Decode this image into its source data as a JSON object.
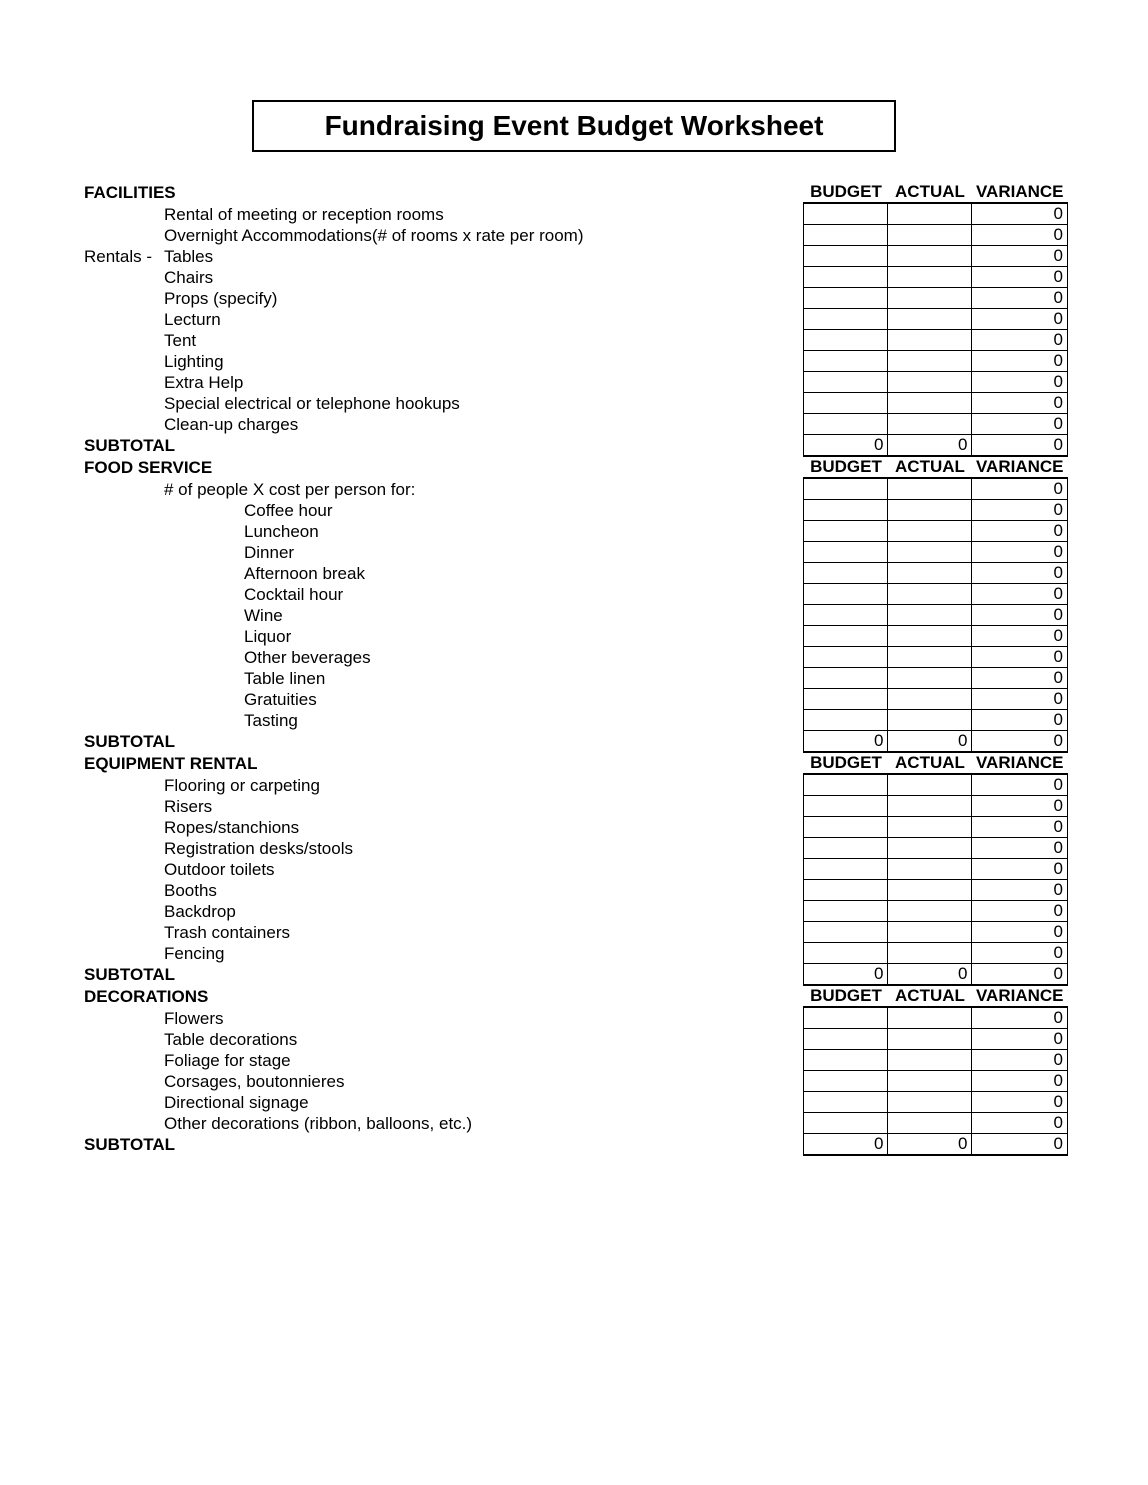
{
  "title": "Fundraising Event Budget Worksheet",
  "columns": {
    "budget": "BUDGET",
    "actual": "ACTUAL",
    "variance": "VARIANCE"
  },
  "subtotal_label": "SUBTOTAL",
  "sections": [
    {
      "heading": "FACILITIES",
      "rows": [
        {
          "prefix": "",
          "indent": 1,
          "label": "Rental of meeting or reception rooms",
          "budget": "",
          "actual": "",
          "variance": "0"
        },
        {
          "prefix": "",
          "indent": 1,
          "label": "Overnight Accommodations(# of rooms x rate per room)",
          "budget": "",
          "actual": "",
          "variance": "0"
        },
        {
          "prefix": "Rentals -",
          "indent": 1,
          "label": "Tables",
          "budget": "",
          "actual": "",
          "variance": "0"
        },
        {
          "prefix": "",
          "indent": 1,
          "label": "Chairs",
          "budget": "",
          "actual": "",
          "variance": "0"
        },
        {
          "prefix": "",
          "indent": 1,
          "label": "Props (specify)",
          "budget": "",
          "actual": "",
          "variance": "0"
        },
        {
          "prefix": "",
          "indent": 1,
          "label": "Lecturn",
          "budget": "",
          "actual": "",
          "variance": "0"
        },
        {
          "prefix": "",
          "indent": 1,
          "label": "Tent",
          "budget": "",
          "actual": "",
          "variance": "0"
        },
        {
          "prefix": "",
          "indent": 1,
          "label": "Lighting",
          "budget": "",
          "actual": "",
          "variance": "0"
        },
        {
          "prefix": "",
          "indent": 1,
          "label": "Extra Help",
          "budget": "",
          "actual": "",
          "variance": "0"
        },
        {
          "prefix": "",
          "indent": 1,
          "label": "Special electrical or telephone hookups",
          "budget": "",
          "actual": "",
          "variance": "0"
        },
        {
          "prefix": "",
          "indent": 1,
          "label": "Clean-up charges",
          "budget": "",
          "actual": "",
          "variance": "0"
        }
      ],
      "subtotal": {
        "budget": "0",
        "actual": "0",
        "variance": "0"
      }
    },
    {
      "heading": "FOOD SERVICE",
      "rows": [
        {
          "prefix": "",
          "indent": 1,
          "label": "# of people X cost per person for:",
          "budget": "",
          "actual": "",
          "variance": "0"
        },
        {
          "prefix": "",
          "indent": 2,
          "label": "Coffee hour",
          "budget": "",
          "actual": "",
          "variance": "0"
        },
        {
          "prefix": "",
          "indent": 2,
          "label": "Luncheon",
          "budget": "",
          "actual": "",
          "variance": "0"
        },
        {
          "prefix": "",
          "indent": 2,
          "label": "Dinner",
          "budget": "",
          "actual": "",
          "variance": "0"
        },
        {
          "prefix": "",
          "indent": 2,
          "label": "Afternoon break",
          "budget": "",
          "actual": "",
          "variance": "0"
        },
        {
          "prefix": "",
          "indent": 2,
          "label": "Cocktail hour",
          "budget": "",
          "actual": "",
          "variance": "0"
        },
        {
          "prefix": "",
          "indent": 2,
          "label": "Wine",
          "budget": "",
          "actual": "",
          "variance": "0"
        },
        {
          "prefix": "",
          "indent": 2,
          "label": "Liquor",
          "budget": "",
          "actual": "",
          "variance": "0"
        },
        {
          "prefix": "",
          "indent": 2,
          "label": "Other beverages",
          "budget": "",
          "actual": "",
          "variance": "0"
        },
        {
          "prefix": "",
          "indent": 2,
          "label": "Table linen",
          "budget": "",
          "actual": "",
          "variance": "0"
        },
        {
          "prefix": "",
          "indent": 2,
          "label": "Gratuities",
          "budget": "",
          "actual": "",
          "variance": "0"
        },
        {
          "prefix": "",
          "indent": 2,
          "label": "Tasting",
          "budget": "",
          "actual": "",
          "variance": "0"
        }
      ],
      "subtotal": {
        "budget": "0",
        "actual": "0",
        "variance": "0"
      }
    },
    {
      "heading": "EQUIPMENT RENTAL",
      "rows": [
        {
          "prefix": "",
          "indent": 1,
          "label": "Flooring or carpeting",
          "budget": "",
          "actual": "",
          "variance": "0"
        },
        {
          "prefix": "",
          "indent": 1,
          "label": "Risers",
          "budget": "",
          "actual": "",
          "variance": "0"
        },
        {
          "prefix": "",
          "indent": 1,
          "label": "Ropes/stanchions",
          "budget": "",
          "actual": "",
          "variance": "0"
        },
        {
          "prefix": "",
          "indent": 1,
          "label": "Registration desks/stools",
          "budget": "",
          "actual": "",
          "variance": "0"
        },
        {
          "prefix": "",
          "indent": 1,
          "label": "Outdoor toilets",
          "budget": "",
          "actual": "",
          "variance": "0"
        },
        {
          "prefix": "",
          "indent": 1,
          "label": "Booths",
          "budget": "",
          "actual": "",
          "variance": "0"
        },
        {
          "prefix": "",
          "indent": 1,
          "label": "Backdrop",
          "budget": "",
          "actual": "",
          "variance": "0"
        },
        {
          "prefix": "",
          "indent": 1,
          "label": "Trash containers",
          "budget": "",
          "actual": "",
          "variance": "0"
        },
        {
          "prefix": "",
          "indent": 1,
          "label": "Fencing",
          "budget": "",
          "actual": "",
          "variance": "0"
        }
      ],
      "subtotal": {
        "budget": "0",
        "actual": "0",
        "variance": "0"
      }
    },
    {
      "heading": "DECORATIONS",
      "rows": [
        {
          "prefix": "",
          "indent": 1,
          "label": "Flowers",
          "budget": "",
          "actual": "",
          "variance": "0"
        },
        {
          "prefix": "",
          "indent": 1,
          "label": "Table decorations",
          "budget": "",
          "actual": "",
          "variance": "0"
        },
        {
          "prefix": "",
          "indent": 1,
          "label": "Foliage for stage",
          "budget": "",
          "actual": "",
          "variance": "0"
        },
        {
          "prefix": "",
          "indent": 1,
          "label": "Corsages, boutonnieres",
          "budget": "",
          "actual": "",
          "variance": "0"
        },
        {
          "prefix": "",
          "indent": 1,
          "label": "Directional signage",
          "budget": "",
          "actual": "",
          "variance": "0"
        },
        {
          "prefix": "",
          "indent": 1,
          "label": "Other decorations (ribbon, balloons, etc.)",
          "budget": "",
          "actual": "",
          "variance": "0"
        }
      ],
      "subtotal": {
        "budget": "0",
        "actual": "0",
        "variance": "0"
      }
    }
  ]
}
